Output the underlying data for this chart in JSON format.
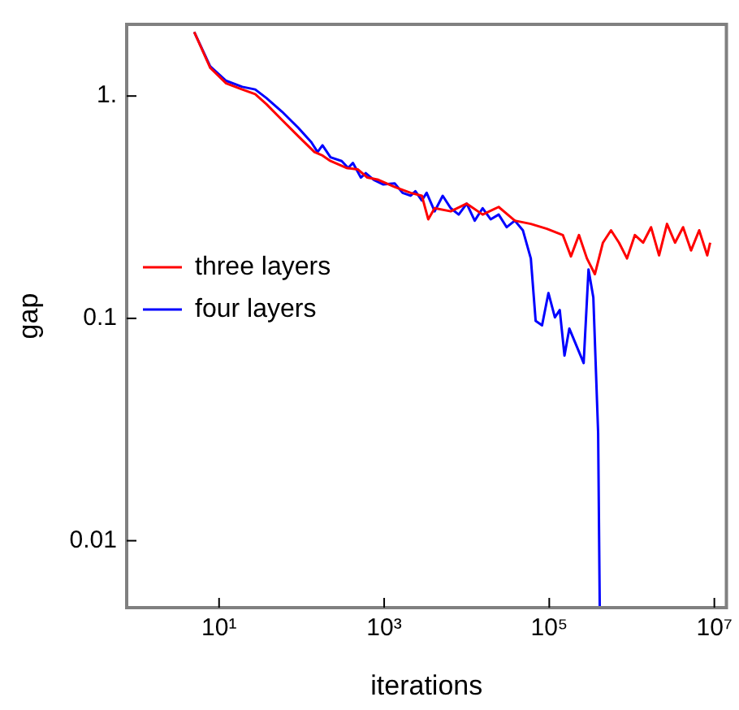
{
  "chart_data": {
    "type": "line",
    "xlabel": "iterations",
    "ylabel": "gap",
    "log": "xy",
    "grid": false,
    "legend": "left",
    "marker": "none",
    "line_style": "solid",
    "xlim": [
      0.76,
      14000000
    ],
    "ylim": [
      0.005,
      2.1
    ],
    "xticks": [
      {
        "value": 10,
        "label": "10¹"
      },
      {
        "value": 1000,
        "label": "10³"
      },
      {
        "value": 100000,
        "label": "10⁵"
      },
      {
        "value": 10000000,
        "label": "10⁷"
      }
    ],
    "yticks": [
      {
        "value": 0.01,
        "label": "0.01"
      },
      {
        "value": 0.1,
        "label": "0.1"
      },
      {
        "value": 1,
        "label": "1."
      }
    ],
    "series": [
      {
        "name": "three layers",
        "color": "#ff0000",
        "x": [
          5.0,
          7.8,
          12.2,
          19.1,
          27.4,
          37.4,
          58,
          91,
          143,
          179,
          224,
          349,
          478,
          625,
          850,
          1340,
          2090,
          2860,
          3420,
          4090,
          6400,
          10000,
          15600,
          24400,
          38300,
          59800,
          93500,
          146000,
          183000,
          229000,
          286000,
          357000,
          447000,
          560000,
          700000,
          875000,
          1090000,
          1370000,
          1710000,
          2140000,
          2670000,
          3340000,
          4180000,
          5220000,
          6550000,
          8200000,
          8900000
        ],
        "values": [
          1.94,
          1.34,
          1.14,
          1.07,
          1.02,
          0.92,
          0.78,
          0.66,
          0.56,
          0.54,
          0.51,
          0.475,
          0.468,
          0.43,
          0.42,
          0.39,
          0.367,
          0.356,
          0.279,
          0.313,
          0.303,
          0.328,
          0.293,
          0.317,
          0.275,
          0.266,
          0.253,
          0.237,
          0.19,
          0.237,
          0.186,
          0.158,
          0.219,
          0.249,
          0.219,
          0.186,
          0.237,
          0.219,
          0.257,
          0.192,
          0.266,
          0.219,
          0.257,
          0.202,
          0.249,
          0.192,
          0.219
        ]
      },
      {
        "name": "four layers",
        "color": "#0000ff",
        "x": [
          5.0,
          7.8,
          12.2,
          19.1,
          27.4,
          37.4,
          58,
          91,
          131,
          156,
          179,
          224,
          306,
          366,
          418,
          522,
          598,
          748,
          977,
          1340,
          1670,
          2090,
          2390,
          2860,
          3270,
          4090,
          5120,
          6400,
          8000,
          10000,
          12500,
          15600,
          19500,
          24400,
          30500,
          38300,
          47900,
          59800,
          68400,
          81800,
          97700,
          117000,
          134000,
          153000,
          175000,
          261000,
          299000,
          342000,
          391000,
          409000
        ],
        "values": [
          1.94,
          1.36,
          1.17,
          1.1,
          1.07,
          0.98,
          0.85,
          0.72,
          0.62,
          0.56,
          0.6,
          0.53,
          0.51,
          0.475,
          0.5,
          0.43,
          0.45,
          0.42,
          0.4,
          0.405,
          0.367,
          0.356,
          0.373,
          0.339,
          0.367,
          0.303,
          0.356,
          0.313,
          0.293,
          0.328,
          0.275,
          0.313,
          0.279,
          0.293,
          0.257,
          0.275,
          0.249,
          0.186,
          0.0975,
          0.093,
          0.13,
          0.101,
          0.109,
          0.068,
          0.09,
          0.063,
          0.166,
          0.124,
          0.0305,
          0.005
        ]
      }
    ]
  }
}
